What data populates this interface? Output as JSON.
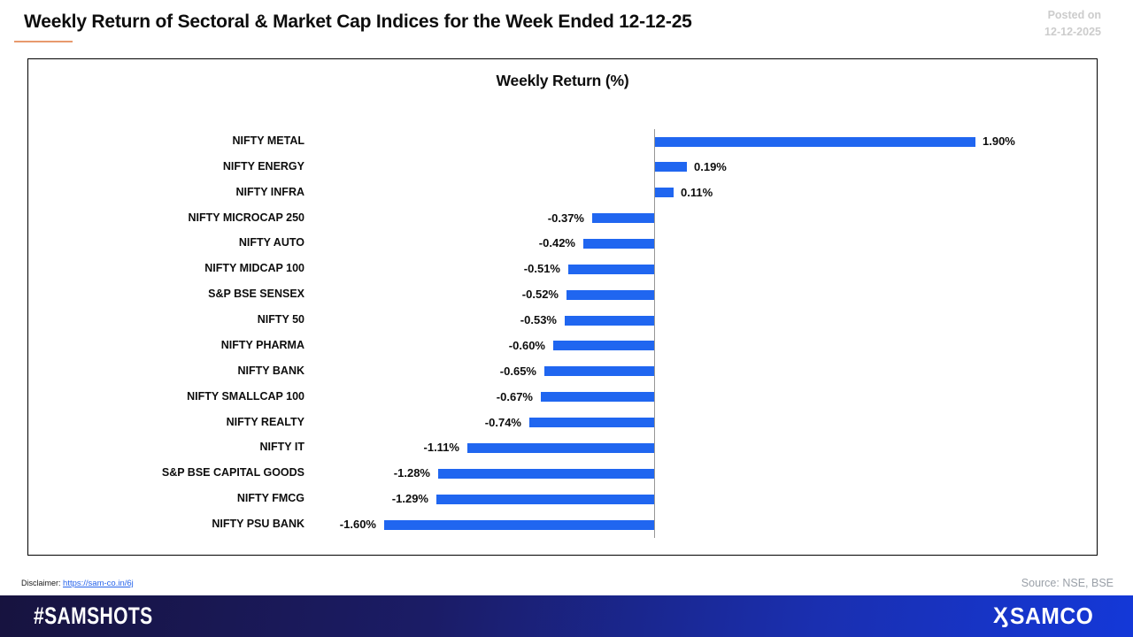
{
  "header": {
    "title": "Weekly Return of Sectoral & Market Cap Indices for the Week Ended 12-12-25",
    "posted_on_line1": "Posted on",
    "posted_on_line2": "12-12-2025"
  },
  "chart": {
    "title": "Weekly Return (%)",
    "source": "Source: NSE, BSE",
    "disclaimer_label": "Disclaimer:",
    "disclaimer_link": "https://sam-co.in/6j"
  },
  "chart_data": {
    "type": "bar",
    "orientation": "horizontal",
    "title": "Weekly Return (%)",
    "categories": [
      "NIFTY METAL",
      "NIFTY ENERGY",
      "NIFTY INFRA",
      "NIFTY MICROCAP 250",
      "NIFTY AUTO",
      "NIFTY MIDCAP 100",
      "S&P BSE SENSEX",
      "NIFTY 50",
      "NIFTY PHARMA",
      "NIFTY BANK",
      "NIFTY SMALLCAP 100",
      "NIFTY REALTY",
      "NIFTY IT",
      "S&P BSE CAPITAL GOODS",
      "NIFTY FMCG",
      "NIFTY PSU BANK"
    ],
    "values": [
      1.9,
      0.19,
      0.11,
      -0.37,
      -0.42,
      -0.51,
      -0.52,
      -0.53,
      -0.6,
      -0.65,
      -0.67,
      -0.74,
      -1.11,
      -1.28,
      -1.29,
      -1.6
    ],
    "value_labels": [
      "1.90%",
      "0.19%",
      "0.11%",
      "-0.37%",
      "-0.42%",
      "-0.51%",
      "-0.52%",
      "-0.53%",
      "-0.60%",
      "-0.65%",
      "-0.67%",
      "-0.74%",
      "-1.11%",
      "-1.28%",
      "-1.29%",
      "-1.60%"
    ],
    "unit": "%",
    "bar_color": "#2066F0",
    "axis": {
      "zero_line": true,
      "grid": false,
      "value_axis_labels_hidden": true
    },
    "legend": "none"
  },
  "colors": {
    "bar": "#2066F0",
    "title_underline": "#E89A6D",
    "posted_on_text": "#CCCCCC",
    "source_text": "#9AA0A8",
    "link": "#2563EB",
    "zero_line": "#969696",
    "footer_left": "#17133F",
    "footer_right": "#1438D8"
  },
  "footer": {
    "hashtag": "#SAMSHOTS",
    "brand": "SAMCO",
    "brand_icon_glyph": "Ӽ"
  }
}
